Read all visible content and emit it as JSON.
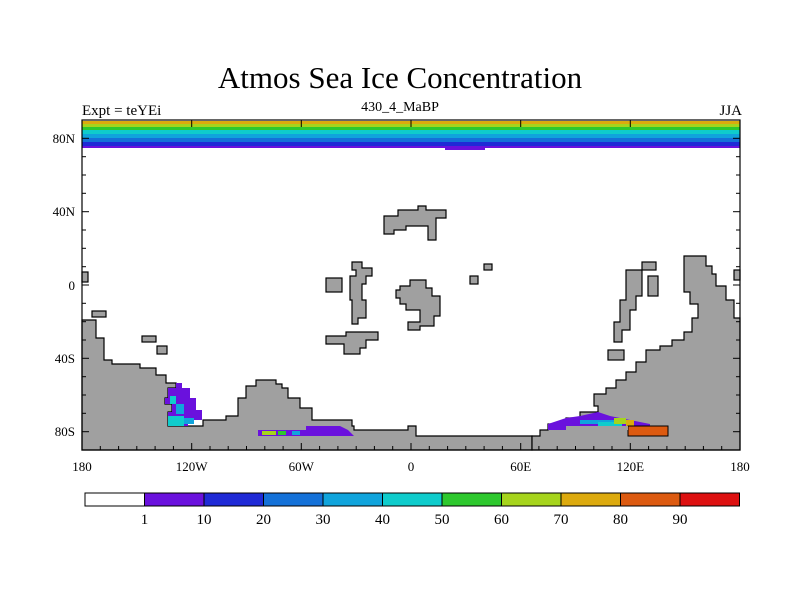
{
  "title": "Atmos Sea Ice Concentration",
  "subtitle_left": "Expt = teYEi",
  "subtitle_center": "430_4_MaBP",
  "subtitle_right": "JJA",
  "colors": {
    "land": "#a0a0a0",
    "levels": [
      "#ffffff",
      "#6a11dd",
      "#1f2ad6",
      "#1471d8",
      "#10a4dc",
      "#0fcccc",
      "#2ec82e",
      "#a6d41c",
      "#dcaa0e",
      "#dc5a10",
      "#dd1010"
    ]
  },
  "chart_data": {
    "type": "map",
    "title": "Atmos Sea Ice Concentration",
    "x_ticks": [
      "180",
      "120W",
      "60W",
      "0",
      "60E",
      "120E",
      "180"
    ],
    "y_ticks": [
      "80N",
      "40N",
      "0",
      "40S",
      "80S"
    ],
    "colorbar_labels": [
      "1",
      "10",
      "20",
      "30",
      "40",
      "50",
      "60",
      "70",
      "80",
      "90"
    ],
    "xlim": [
      -180,
      180
    ],
    "ylim": [
      -90,
      90
    ]
  }
}
